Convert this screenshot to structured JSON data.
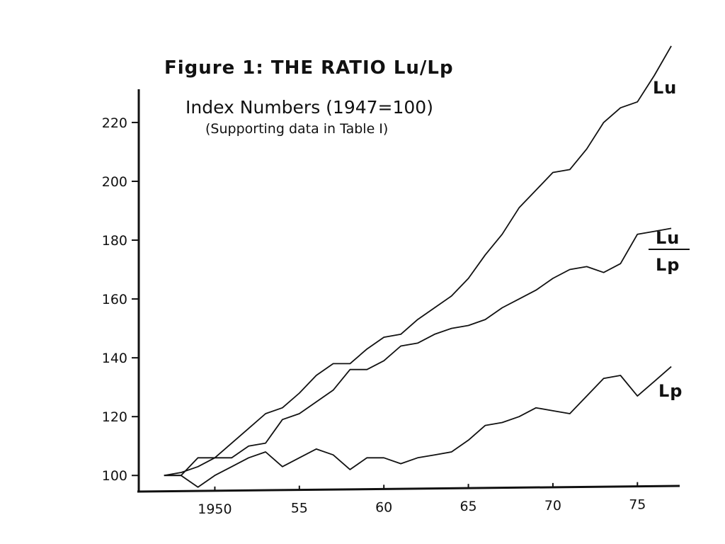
{
  "chart_data": {
    "type": "line",
    "title": "Figure 1: THE RATIO Lu/Lp",
    "subtitle": "Index Numbers (1947=100)",
    "note": "(Supporting data in Table I)",
    "xlabel": "",
    "ylabel": "",
    "xlim": [
      1945.5,
      1977.5
    ],
    "ylim": [
      95,
      226
    ],
    "x_ticks": [
      {
        "value": 1950,
        "label": "1950"
      },
      {
        "value": 1955,
        "label": "55"
      },
      {
        "value": 1960,
        "label": "60"
      },
      {
        "value": 1965,
        "label": "65"
      },
      {
        "value": 1970,
        "label": "70"
      },
      {
        "value": 1975,
        "label": "75"
      }
    ],
    "y_ticks": [
      {
        "value": 100,
        "label": "100"
      },
      {
        "value": 120,
        "label": "120"
      },
      {
        "value": 140,
        "label": "140"
      },
      {
        "value": 160,
        "label": "160"
      },
      {
        "value": 180,
        "label": "180"
      },
      {
        "value": 200,
        "label": "200"
      },
      {
        "value": 220,
        "label": "220"
      }
    ],
    "grid": false,
    "x": [
      1947,
      1948,
      1949,
      1950,
      1951,
      1952,
      1953,
      1954,
      1955,
      1956,
      1957,
      1958,
      1959,
      1960,
      1961,
      1962,
      1963,
      1964,
      1965,
      1966,
      1967,
      1968,
      1969,
      1970,
      1971,
      1972,
      1973,
      1974,
      1975,
      1976,
      1977
    ],
    "series": [
      {
        "label_numerator": "Lu",
        "label_denominator": "",
        "values": [
          100,
          101,
          103,
          106,
          111,
          116,
          121,
          123,
          128,
          134,
          138,
          138,
          143,
          147,
          148,
          153,
          157,
          161,
          167,
          175,
          182,
          191,
          197,
          203,
          204,
          211,
          220,
          225,
          227,
          236,
          246
        ]
      },
      {
        "label_numerator": "Lu",
        "label_denominator": "Lp",
        "values": [
          100,
          100,
          106,
          106,
          106,
          110,
          111,
          119,
          121,
          125,
          129,
          136,
          136,
          139,
          144,
          145,
          148,
          150,
          151,
          153,
          157,
          160,
          163,
          167,
          170,
          171,
          169,
          172,
          182,
          183,
          184
        ]
      },
      {
        "label_numerator": "Lp",
        "label_denominator": "",
        "values": [
          100,
          100,
          96,
          100,
          103,
          106,
          108,
          103,
          106,
          109,
          107,
          102,
          106,
          106,
          104,
          106,
          107,
          108,
          112,
          117,
          118,
          120,
          123,
          122,
          121,
          127,
          133,
          134,
          127,
          132,
          137
        ]
      }
    ]
  }
}
